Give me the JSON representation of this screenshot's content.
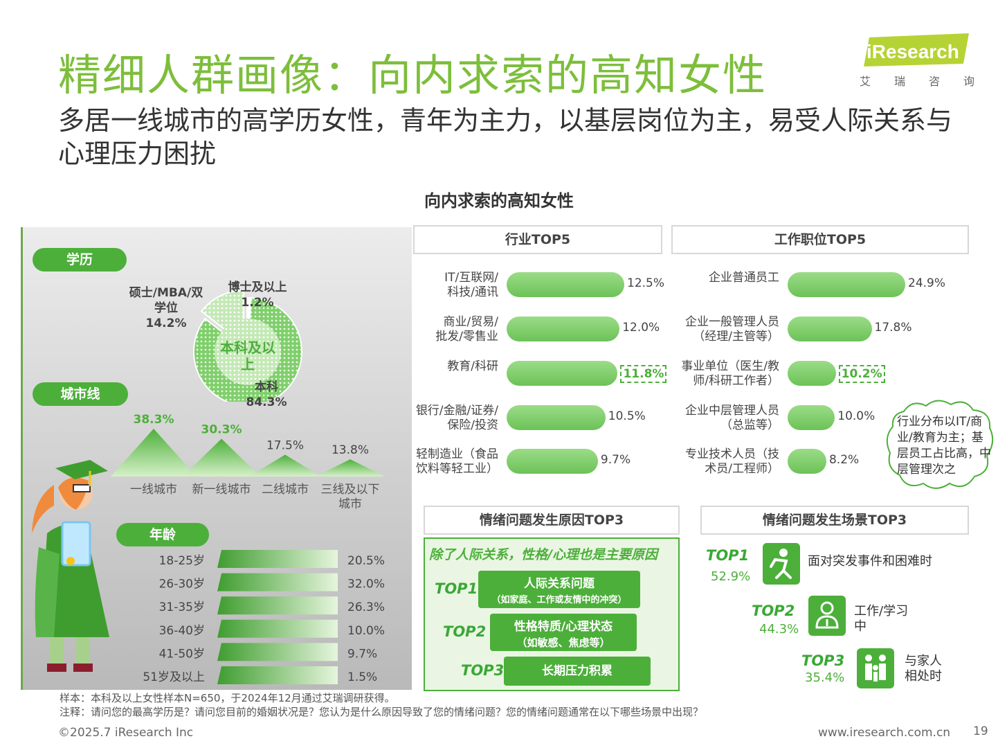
{
  "header": {
    "title": "精细人群画像：向内求索的高知女性",
    "subtitle": "多居一线城市的高学历女性，青年为主力，以基层岗位为主，易受人际关系与心理压力困扰",
    "logo_text": "iResearch",
    "logo_sub": [
      "艾",
      "瑞",
      "咨",
      "询"
    ]
  },
  "section_title": "向内求索的高知女性",
  "colors": {
    "accent": "#7dbe3b",
    "bar": "#7fcf6c",
    "dark_green": "#4caf3a"
  },
  "education": {
    "label": "学历",
    "center_label": "本科及以上",
    "slices": [
      {
        "name": "本科",
        "value_label": "84.3%"
      },
      {
        "name": "硕士/MBA/双学位",
        "value_label": "14.2%"
      },
      {
        "name": "博士及以上",
        "value_label": "1.2%"
      }
    ]
  },
  "city": {
    "label": "城市线"
  },
  "age": {
    "label": "年龄"
  },
  "panels": {
    "industry_title": "行业TOP5",
    "position_title": "工作职位TOP5",
    "cause_title": "情绪问题发生原因TOP3",
    "scene_title": "情绪问题发生场景TOP3"
  },
  "callout": "行业分布以IT/商业/教育为主；基层员工占比高，中层管理次之",
  "causes": {
    "headline": "除了人际关系，性格/心理也是主要原因",
    "items": [
      {
        "rank": "TOP1",
        "title": "人际关系问题",
        "sub": "（如家庭、工作或友情中的冲突）"
      },
      {
        "rank": "TOP2",
        "title": "性格特质/心理状态",
        "sub": "（如敏感、焦虑等）"
      },
      {
        "rank": "TOP3",
        "title": "长期压力积累",
        "sub": ""
      }
    ]
  },
  "scenes": [
    {
      "rank": "TOP1",
      "pct": "52.9%",
      "label": "面对突发事件和困难时",
      "icon": "falling-person-icon"
    },
    {
      "rank": "TOP2",
      "pct": "44.3%",
      "label": "工作/学习中",
      "icon": "worker-icon"
    },
    {
      "rank": "TOP3",
      "pct": "35.4%",
      "label": "与家人相处时",
      "icon": "family-icon"
    }
  ],
  "footer": {
    "sample": "样本：本科及以上女性样本N=650，于2024年12月通过艾瑞调研获得。",
    "note": "注释：请问您的最高学历是？请问您目前的婚姻状况是？您认为是什么原因导致了您的情绪问题？您的情绪问题通常在以下哪些场景中出现？",
    "copyright": "©2025.7 iResearch Inc",
    "url": "www.iresearch.com.cn",
    "page": "19"
  },
  "chart_data": [
    {
      "type": "pie",
      "title": "学历",
      "categories": [
        "本科",
        "硕士/MBA/双学位",
        "博士及以上"
      ],
      "values": [
        84.3,
        14.2,
        1.2
      ]
    },
    {
      "type": "area",
      "title": "城市线",
      "categories": [
        "一线城市",
        "新一线城市",
        "二线城市",
        "三线及以下城市"
      ],
      "values": [
        38.3,
        30.3,
        17.5,
        13.8
      ],
      "value_labels": [
        "38.3%",
        "30.3%",
        "17.5%",
        "13.8%"
      ]
    },
    {
      "type": "bar",
      "title": "年龄",
      "categories": [
        "18-25岁",
        "26-30岁",
        "31-35岁",
        "36-40岁",
        "41-50岁",
        "51岁及以上"
      ],
      "values": [
        20.5,
        32.0,
        26.3,
        10.0,
        9.7,
        1.5
      ],
      "value_labels": [
        "20.5%",
        "32.0%",
        "26.3%",
        "10.0%",
        "9.7%",
        "1.5%"
      ]
    },
    {
      "type": "bar",
      "title": "行业TOP5",
      "categories": [
        "IT/互联网/科技/通讯",
        "商业/贸易/批发/零售业",
        "教育/科研",
        "银行/金融/证券/保险/投资",
        "轻制造业（食品饮料等轻工业）"
      ],
      "values": [
        12.5,
        12.0,
        11.8,
        10.5,
        9.7
      ],
      "value_labels": [
        "12.5%",
        "12.0%",
        "11.8%",
        "10.5%",
        "9.7%"
      ],
      "highlight_index": 2
    },
    {
      "type": "bar",
      "title": "工作职位TOP5",
      "categories": [
        "企业普通员工",
        "企业一般管理人员（经理/主管等）",
        "事业单位（医生/教师/科研工作者）",
        "企业中层管理人员（总监等）",
        "专业技术人员（技术员/工程师）"
      ],
      "values": [
        24.9,
        17.8,
        10.2,
        10.0,
        8.2
      ],
      "value_labels": [
        "24.9%",
        "17.8%",
        "10.2%",
        "10.0%",
        "8.2%"
      ],
      "highlight_index": 2
    }
  ]
}
